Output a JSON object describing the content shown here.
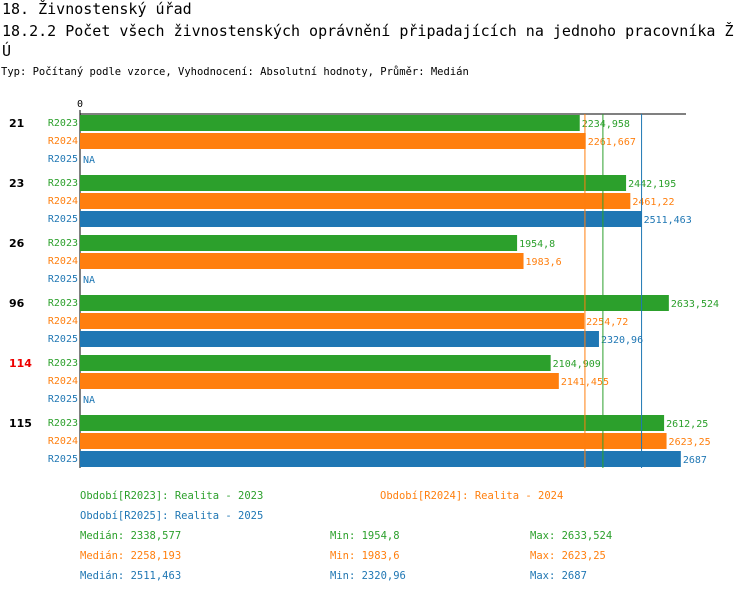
{
  "header": {
    "line1": "18. Živnostenský úřad",
    "line2": "18.2.2 Počet všech živnostenských oprávnění připadajících na jednoho pracovníka Ž",
    "line3": "Ú",
    "subtitle": "Typ: Počítaný podle vzorce, Vyhodnocení: Absolutní hodnoty, Průměr: Medián"
  },
  "colors": {
    "R2023": "#2ca02c",
    "R2024": "#ff7f0e",
    "R2025": "#1f77b4",
    "highlight": "#ee0000",
    "text": "#000000"
  },
  "chart_data": {
    "type": "bar",
    "orientation": "horizontal",
    "axis_zero_label": "0",
    "xlim": [
      0,
      2900
    ],
    "categories": [
      "21",
      "23",
      "26",
      "96",
      "114",
      "115"
    ],
    "highlighted_categories": [
      "114"
    ],
    "series": [
      {
        "name": "R2023",
        "values": [
          2234.958,
          2442.195,
          1954.8,
          2633.524,
          2104.909,
          2612.25
        ],
        "labels": [
          "2234,958",
          "2442,195",
          "1954,8",
          "2633,524",
          "2104,909",
          "2612,25"
        ]
      },
      {
        "name": "R2024",
        "values": [
          2261.667,
          2461.22,
          1983.6,
          2254.72,
          2141.455,
          2623.25
        ],
        "labels": [
          "2261,667",
          "2461,22",
          "1983,6",
          "2254,72",
          "2141,455",
          "2623,25"
        ]
      },
      {
        "name": "R2025",
        "values": [
          null,
          2511.463,
          null,
          2320.96,
          null,
          2687
        ],
        "labels": [
          "NA",
          "2511,463",
          "NA",
          "2320,96",
          "NA",
          "2687"
        ]
      }
    ],
    "median_lines": {
      "R2023": 2338.577,
      "R2024": 2258.193,
      "R2025": 2511.463
    }
  },
  "legend": {
    "periods": [
      {
        "series": "R2023",
        "text": "Období[R2023]: Realita - 2023"
      },
      {
        "series": "R2024",
        "text": "Období[R2024]: Realita - 2024"
      },
      {
        "series": "R2025",
        "text": "Období[R2025]: Realita - 2025"
      }
    ],
    "stats": [
      {
        "series": "R2023",
        "median": "Medián: 2338,577",
        "min": "Min: 1954,8",
        "max": "Max: 2633,524"
      },
      {
        "series": "R2024",
        "median": "Medián: 2258,193",
        "min": "Min: 1983,6",
        "max": "Max: 2623,25"
      },
      {
        "series": "R2025",
        "median": "Medián: 2511,463",
        "min": "Min: 2320,96",
        "max": "Max: 2687"
      }
    ]
  }
}
